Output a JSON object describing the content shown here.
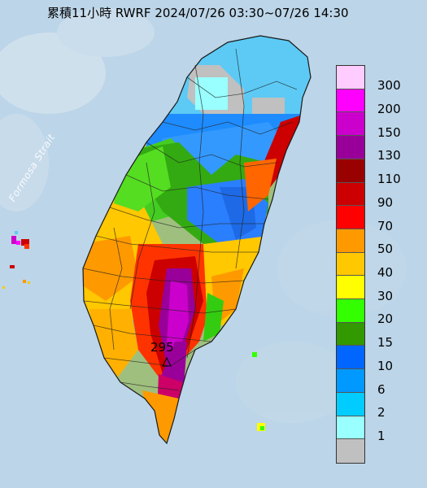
{
  "title": "累積11小時 RWRF 2024/07/26 03:30~07/26 14:30",
  "strait_label": "Formosa Strait",
  "max_value": "295",
  "colors": {
    "sea": "#b9d3e6",
    "land_base": "#9fbf7e"
  },
  "legend": {
    "items": [
      {
        "label": "300",
        "color": "#ffccff"
      },
      {
        "label": "200",
        "color": "#ff00ff"
      },
      {
        "label": "150",
        "color": "#cc00cc"
      },
      {
        "label": "130",
        "color": "#990099"
      },
      {
        "label": "110",
        "color": "#990000"
      },
      {
        "label": "90",
        "color": "#cc0000"
      },
      {
        "label": "70",
        "color": "#ff0000"
      },
      {
        "label": "50",
        "color": "#ff9900"
      },
      {
        "label": "40",
        "color": "#ffc800"
      },
      {
        "label": "30",
        "color": "#ffff00"
      },
      {
        "label": "20",
        "color": "#33ff00"
      },
      {
        "label": "15",
        "color": "#339900"
      },
      {
        "label": "10",
        "color": "#0066ff"
      },
      {
        "label": "6",
        "color": "#0099ff"
      },
      {
        "label": "2",
        "color": "#00ccff"
      },
      {
        "label": "1",
        "color": "#99ffff"
      },
      {
        "label": "",
        "color": "#c0c0c0"
      }
    ]
  }
}
